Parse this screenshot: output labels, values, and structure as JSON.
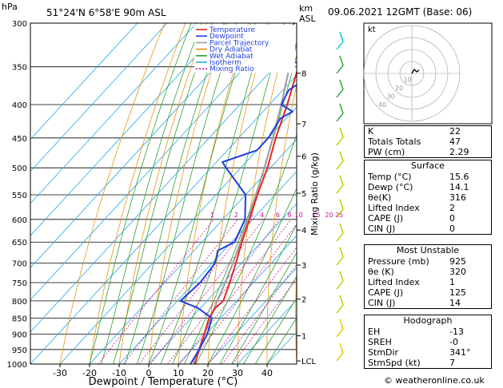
{
  "header": {
    "hpa_label": "hPa",
    "location": "51°24'N  6°58'E  90m  ASL",
    "km_label": "km",
    "asl_label": "ASL",
    "datetime": "09.06.2021  12GMT  (Base: 06)"
  },
  "chart_data": {
    "type": "skew-t",
    "xlabel": "Dewpoint / Temperature (°C)",
    "ylabel": "Mixing Ratio (g/kg)",
    "x_ticks": [
      "-30",
      "-20",
      "-10",
      "0",
      "10",
      "20",
      "30",
      "40"
    ],
    "x_values": [
      -30,
      -20,
      -10,
      0,
      10,
      20,
      30,
      40
    ],
    "pressure_levels": [
      300,
      350,
      400,
      450,
      500,
      550,
      600,
      650,
      700,
      750,
      800,
      850,
      900,
      950,
      1000
    ],
    "pressure_labels": [
      "300",
      "350",
      "400",
      "450",
      "500",
      "550",
      "600",
      "650",
      "700",
      "750",
      "800",
      "850",
      "900",
      "950",
      "1000"
    ],
    "km_ticks": [
      {
        "label": "8",
        "p": 358
      },
      {
        "label": "7",
        "p": 428
      },
      {
        "label": "6",
        "p": 480
      },
      {
        "label": "5",
        "p": 547
      },
      {
        "label": "4",
        "p": 623
      },
      {
        "label": "3",
        "p": 705
      },
      {
        "label": "2",
        "p": 795
      },
      {
        "label": "1",
        "p": 905
      },
      {
        "label": "LCL",
        "p": 989
      }
    ],
    "mixing_ratio_labels": [
      "1",
      "2",
      "3",
      "4",
      "6",
      "8",
      "10",
      "15",
      "20",
      "25"
    ],
    "mixing_ratio_values": [
      1,
      2,
      3,
      4,
      6,
      8,
      10,
      15,
      20,
      25
    ],
    "legend": [
      {
        "name": "Temperature",
        "color": "#e8261f"
      },
      {
        "name": "Dewpoint",
        "color": "#1f3fe0"
      },
      {
        "name": "Parcel Trajectory",
        "color": "#a0a0a0"
      },
      {
        "name": "Dry Adiabat",
        "color": "#e8950f"
      },
      {
        "name": "Wet Adiabat",
        "color": "#2ea02e"
      },
      {
        "name": "Isotherm",
        "color": "#25a8e8"
      },
      {
        "name": "Mixing Ratio",
        "color": "#d0109a"
      }
    ],
    "temperature": [
      [
        1000,
        15.6
      ],
      [
        950,
        12.5
      ],
      [
        900,
        9.5
      ],
      [
        850,
        6.0
      ],
      [
        820,
        5.0
      ],
      [
        800,
        5.5
      ],
      [
        750,
        2.0
      ],
      [
        700,
        -2.0
      ],
      [
        650,
        -6.5
      ],
      [
        600,
        -11.0
      ],
      [
        550,
        -16.0
      ],
      [
        500,
        -21.0
      ],
      [
        450,
        -27.5
      ],
      [
        400,
        -34.0
      ],
      [
        350,
        -42.0
      ],
      [
        300,
        -50.0
      ]
    ],
    "dewpoint": [
      [
        1000,
        14.1
      ],
      [
        950,
        12.5
      ],
      [
        900,
        10.5
      ],
      [
        850,
        7.0
      ],
      [
        820,
        -1.0
      ],
      [
        800,
        -9.0
      ],
      [
        750,
        -8.0
      ],
      [
        700,
        -9.0
      ],
      [
        670,
        -12.0
      ],
      [
        650,
        -9.0
      ],
      [
        600,
        -12.5
      ],
      [
        550,
        -20.0
      ],
      [
        500,
        -35.0
      ],
      [
        490,
        -38.0
      ],
      [
        470,
        -30.0
      ],
      [
        450,
        -30.0
      ],
      [
        420,
        -32.0
      ],
      [
        410,
        -30.0
      ],
      [
        400,
        -36.0
      ],
      [
        380,
        -38.0
      ],
      [
        355,
        -34.0
      ],
      [
        350,
        -33.0
      ],
      [
        340,
        -54.0
      ],
      [
        300,
        -57.0
      ]
    ],
    "parcel": [
      [
        1000,
        15.6
      ],
      [
        989,
        14.1
      ],
      [
        950,
        12.5
      ],
      [
        900,
        9.5
      ],
      [
        850,
        6.5
      ],
      [
        800,
        3.5
      ],
      [
        750,
        0.5
      ],
      [
        700,
        -3.0
      ],
      [
        650,
        -7.0
      ],
      [
        600,
        -11.5
      ],
      [
        550,
        -16.5
      ],
      [
        500,
        -22.0
      ],
      [
        450,
        -28.5
      ],
      [
        400,
        -36.0
      ],
      [
        350,
        -45.0
      ],
      [
        300,
        -54.0
      ]
    ],
    "wind_barbs_colors": [
      "#00c8c8",
      "#2ea02e",
      "#2ea02e",
      "#2ea02e",
      "#b0d000",
      "#b0d000",
      "#b0d000",
      "#b0d000",
      "#b0d000",
      "#b0d000",
      "#b0d000",
      "#b0d000",
      "#e6c800",
      "#e6c800"
    ]
  },
  "hodograph": {
    "label": "kt",
    "ring_labels": [
      "10",
      "20",
      "30",
      "40"
    ]
  },
  "indices": {
    "rows": [
      {
        "k": "K",
        "v": "22"
      },
      {
        "k": "Totals Totals",
        "v": "47"
      },
      {
        "k": "PW (cm)",
        "v": "2.29"
      }
    ]
  },
  "surface": {
    "title": "Surface",
    "rows": [
      {
        "k": "Temp (°C)",
        "v": "15.6"
      },
      {
        "k": "Dewp (°C)",
        "v": "14.1"
      },
      {
        "k": "θe(K)",
        "v": "316"
      },
      {
        "k": "Lifted Index",
        "v": "2"
      },
      {
        "k": "CAPE (J)",
        "v": "0"
      },
      {
        "k": "CIN (J)",
        "v": "0"
      }
    ]
  },
  "unstable": {
    "title": "Most Unstable",
    "rows": [
      {
        "k": "Pressure (mb)",
        "v": "925"
      },
      {
        "k": "θe (K)",
        "v": "320"
      },
      {
        "k": "Lifted Index",
        "v": "1"
      },
      {
        "k": "CAPE (J)",
        "v": "125"
      },
      {
        "k": "CIN (J)",
        "v": "14"
      }
    ]
  },
  "hodo_table": {
    "title": "Hodograph",
    "rows": [
      {
        "k": "EH",
        "v": "-13"
      },
      {
        "k": "SREH",
        "v": "-0"
      },
      {
        "k": "StmDir",
        "v": "341°"
      },
      {
        "k": "StmSpd (kt)",
        "v": "7"
      }
    ]
  },
  "footer": "© weatheronline.co.uk"
}
